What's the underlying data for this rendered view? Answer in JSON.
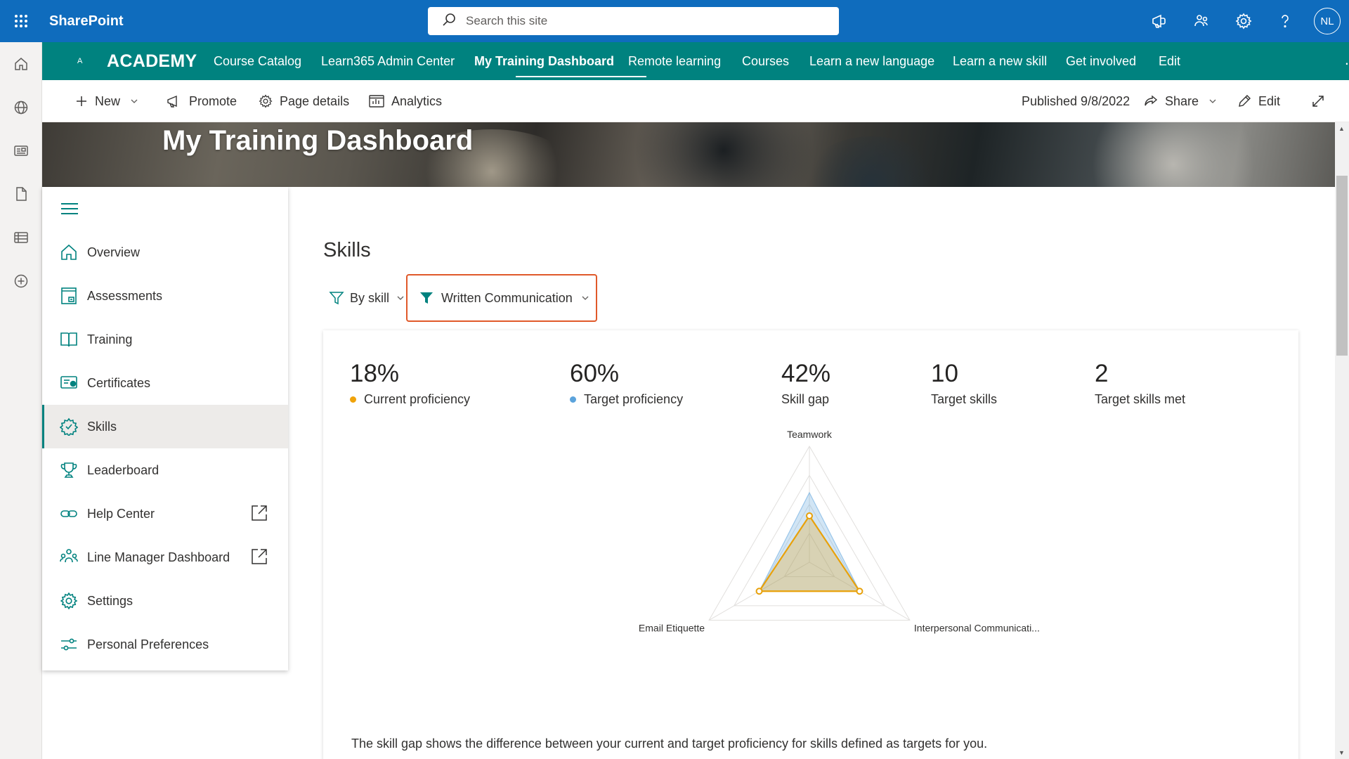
{
  "suite": {
    "brand": "SharePoint",
    "search_placeholder": "Search this site",
    "avatar_initials": "NL",
    "icons": [
      "waffle-icon",
      "announcement-icon",
      "teams-icon",
      "settings-icon",
      "help-icon"
    ]
  },
  "appbar": {
    "icons": [
      "home-icon",
      "globe-icon",
      "news-icon",
      "file-icon",
      "list-icon",
      "add-icon"
    ]
  },
  "hub": {
    "logo": "A",
    "title": "ACADEMY",
    "links": [
      {
        "label": "Course Catalog"
      },
      {
        "label": "Learn365 Admin Center"
      },
      {
        "label": "My Training Dashboard",
        "active": true
      },
      {
        "label": "Remote learning"
      },
      {
        "label": "Courses"
      },
      {
        "label": "Learn a new language"
      },
      {
        "label": "Learn a new skill"
      },
      {
        "label": "Get involved"
      },
      {
        "label": "Edit"
      }
    ],
    "more": "..."
  },
  "commandbar": {
    "new": "New",
    "promote": "Promote",
    "page_details": "Page details",
    "analytics": "Analytics",
    "published": "Published 9/8/2022",
    "share": "Share",
    "edit": "Edit"
  },
  "hero": {
    "title": "My Training Dashboard"
  },
  "leftnav": {
    "items": [
      {
        "label": "Overview",
        "icon": "home-icon"
      },
      {
        "label": "Assessments",
        "icon": "assessment-icon"
      },
      {
        "label": "Training",
        "icon": "book-icon"
      },
      {
        "label": "Certificates",
        "icon": "certificate-icon"
      },
      {
        "label": "Skills",
        "icon": "skills-icon",
        "selected": true
      },
      {
        "label": "Leaderboard",
        "icon": "trophy-icon"
      },
      {
        "label": "Help Center",
        "icon": "link-icon",
        "external": true
      },
      {
        "label": "Line Manager Dashboard",
        "icon": "people-icon",
        "external": true
      },
      {
        "label": "Settings",
        "icon": "settings-icon"
      },
      {
        "label": "Personal Preferences",
        "icon": "preferences-icon"
      }
    ]
  },
  "main": {
    "title": "Skills",
    "filter_by": "By skill",
    "filter_value": "Written Communication",
    "metrics": [
      {
        "value": "18%",
        "label": "Current proficiency",
        "dot_color": "#f0a30a"
      },
      {
        "value": "60%",
        "label": "Target proficiency",
        "dot_color": "#5ba3dc"
      },
      {
        "value": "42%",
        "label": "Skill gap"
      },
      {
        "value": "10",
        "label": "Target skills"
      },
      {
        "value": "2",
        "label": "Target skills met"
      }
    ],
    "footnote": "The skill gap shows the difference between your current and target proficiency for skills defined as targets for you."
  },
  "chart_data": {
    "type": "radar",
    "categories": [
      "Teamwork",
      "Interpersonal Communicati...",
      "Email Etiquette"
    ],
    "rlim": [
      0,
      100
    ],
    "rings": 4,
    "series": [
      {
        "name": "Target proficiency",
        "values": [
          60,
          50,
          50
        ],
        "color": "#5ba3dc"
      },
      {
        "name": "Current proficiency",
        "values": [
          40,
          50,
          50
        ],
        "color": "#e8a10a"
      }
    ]
  },
  "colors": {
    "suitebar": "#0f6cbd",
    "hubnav": "#00827f",
    "accent_orange": "#e0592a"
  }
}
